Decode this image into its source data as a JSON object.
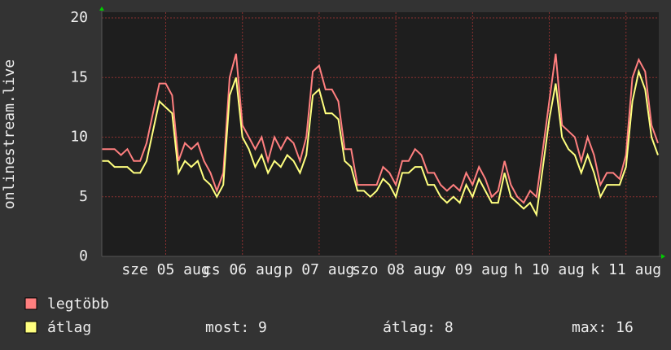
{
  "chart_data": {
    "type": "line",
    "y_label": "onlinestream.live",
    "categories": [
      null,
      null,
      null,
      null,
      null,
      null,
      null,
      null,
      null,
      null,
      "sze 05 aug",
      null,
      null,
      null,
      null,
      null,
      null,
      null,
      null,
      null,
      null,
      null,
      "cs 06 aug",
      null,
      null,
      null,
      null,
      null,
      null,
      null,
      null,
      null,
      null,
      null,
      "p 07 aug",
      null,
      null,
      null,
      null,
      null,
      null,
      null,
      null,
      null,
      null,
      null,
      "szo 08 aug",
      null,
      null,
      null,
      null,
      null,
      null,
      null,
      null,
      null,
      null,
      null,
      "v 09 aug",
      null,
      null,
      null,
      null,
      null,
      null,
      null,
      null,
      null,
      null,
      null,
      "h 10 aug",
      null,
      null,
      null,
      null,
      null,
      null,
      null,
      null,
      null,
      null,
      null,
      "k 11 aug",
      null,
      null,
      null,
      null,
      null
    ],
    "series": [
      {
        "name": "legtöbb",
        "color": "#ff7f7f",
        "values": [
          9,
          9,
          9,
          8.5,
          9,
          8,
          8,
          9.5,
          12,
          14.5,
          14.5,
          13.5,
          8,
          9.5,
          9,
          9.5,
          8,
          7,
          5.5,
          7,
          15,
          17,
          11,
          10,
          9,
          10,
          8,
          10,
          9,
          10,
          9.5,
          8,
          10,
          15.5,
          16,
          14,
          14,
          13,
          9,
          9,
          6,
          6,
          6,
          6,
          7.5,
          7,
          6,
          8,
          8,
          9,
          8.5,
          7,
          7,
          6,
          5.5,
          6,
          5.5,
          7,
          6,
          7.5,
          6.5,
          5,
          5.5,
          8,
          6,
          5,
          4.5,
          5.5,
          5,
          9,
          13,
          17,
          11,
          10.5,
          10,
          8,
          10,
          8.5,
          6,
          7,
          7,
          6.5,
          8.5,
          15,
          16.5,
          15.5,
          11,
          9.5
        ]
      },
      {
        "name": "átlag",
        "color": "#ffff7f",
        "values": [
          8,
          8,
          7.5,
          7.5,
          7.5,
          7,
          7,
          8,
          10.5,
          13,
          12.5,
          12,
          7,
          8,
          7.5,
          8,
          6.5,
          6,
          5,
          6,
          13.5,
          15,
          10,
          9,
          7.5,
          8.5,
          7,
          8,
          7.5,
          8.5,
          8,
          7,
          8.5,
          13.5,
          14,
          12,
          12,
          11.5,
          8,
          7.5,
          5.5,
          5.5,
          5,
          5.5,
          6.5,
          6,
          5,
          7,
          7,
          7.5,
          7.5,
          6,
          6,
          5,
          4.5,
          5,
          4.5,
          6,
          5,
          6.5,
          5.5,
          4.5,
          4.5,
          7,
          5,
          4.5,
          4,
          4.5,
          3.5,
          7.5,
          11.5,
          14.5,
          10,
          9,
          8.5,
          7,
          8.5,
          7,
          5,
          6,
          6,
          6,
          7.5,
          13,
          15.5,
          14,
          10,
          8.5
        ]
      }
    ],
    "stats": [
      "most: 9",
      "átlag: 8",
      "max: 16"
    ],
    "ylim": [
      0,
      20
    ],
    "yticks": [
      0,
      5,
      10,
      15,
      20
    ],
    "grid": true
  }
}
